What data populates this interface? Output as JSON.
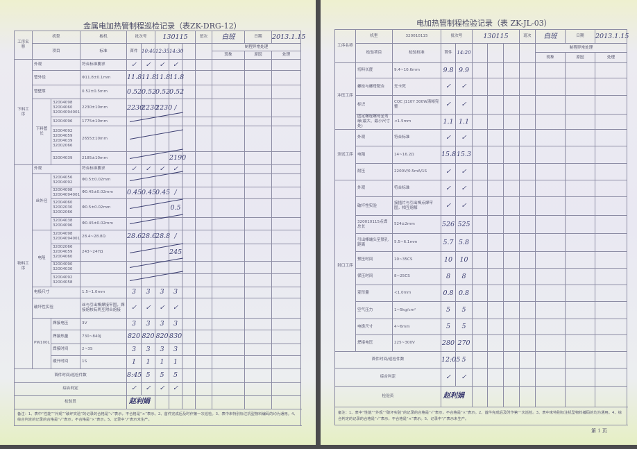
{
  "left": {
    "title": "金属电加热管制程巡检记录（表ZK-DRG-12）",
    "header": {
      "process_name": "工序名称",
      "model_label": "机型",
      "model": "板机",
      "batch_label": "批次号",
      "batch": "130115",
      "shift_label": "班次",
      "shift": "白班",
      "date_label": "日期",
      "date": "2013.1.15",
      "item_label": "项目",
      "standard_label": "标准",
      "first_label": "首件",
      "times": [
        "10:40",
        "12:35",
        "14:30"
      ],
      "abnormal_label": "制程异常处理",
      "phenomenon": "现象",
      "cause": "原因",
      "handling": "处理"
    },
    "rows": [
      {
        "group": "下料工序",
        "item": "外观",
        "standard": "符合标准要求",
        "values": [
          "✓",
          "✓",
          "✓",
          "✓"
        ]
      },
      {
        "item": "管外径",
        "standard": "Φ11.8±0.1mm",
        "values": [
          "11.8",
          "11.8",
          "11.8",
          "11.8"
        ]
      },
      {
        "item": "管壁厚",
        "standard": "0.52±0.5mm",
        "values": [
          "0.52",
          "0.52",
          "0.52",
          "0.52"
        ]
      },
      {
        "sub": "下料管长",
        "code": "32004098 32004060 32004094001",
        "standard": "2230±10mm",
        "values": [
          "2230",
          "2230",
          "2230",
          "/"
        ]
      },
      {
        "code": "32004096",
        "standard": "1775±10mm",
        "values": [
          "",
          "",
          "",
          ""
        ],
        "slash": true
      },
      {
        "code": "32004092 32004059 32004039 32002066",
        "standard": "2655±10mm",
        "values": [
          "",
          "",
          "",
          ""
        ],
        "slash": true
      },
      {
        "code": "32004039",
        "standard": "2185±10mm",
        "values": [
          "",
          "",
          "",
          "2190"
        ],
        "slash": true
      },
      {
        "group": "物料工序",
        "item": "外观",
        "standard": "符合标准要求",
        "values": [
          "✓",
          "✓",
          "✓",
          "✓"
        ]
      },
      {
        "sub": "丝外径",
        "code": "32004056 32004092",
        "standard": "Φ0.5±0.02mm",
        "values": [
          "",
          "",
          "",
          ""
        ],
        "slash": true
      },
      {
        "code": "32004098 32004094001",
        "standard": "Φ0.45±0.02mm",
        "values": [
          "0.45",
          "0.45",
          "0.45",
          "/"
        ]
      },
      {
        "code": "32004060 32002030 32002066",
        "standard": "Φ0.5±0.02mm",
        "values": [
          "",
          "",
          "",
          "0.5"
        ],
        "slash": true
      },
      {
        "code": "32004038 32004096",
        "standard": "Φ0.45±0.02mm",
        "values": [
          "",
          "",
          "",
          ""
        ],
        "slash": true
      },
      {
        "sub": "电阻",
        "code": "32004098 32004094001",
        "standard": "28.4~28.8Ω",
        "values": [
          "28.6",
          "28.6",
          "28.8",
          "/"
        ]
      },
      {
        "code": "32002066 32004059 32004060",
        "standard": "243~247Ω",
        "values": [
          "",
          "",
          "",
          "245"
        ],
        "slash": true
      },
      {
        "code": "32004090 32004030",
        "standard": "",
        "values": [
          "",
          "",
          "",
          ""
        ],
        "slash": true
      },
      {
        "code": "32004092 32004058",
        "standard": "",
        "values": [
          "",
          "",
          "",
          ""
        ],
        "slash": true
      },
      {
        "item": "电极尺寸",
        "standard": "1.5~1.0mm",
        "values": [
          "3",
          "3",
          "3",
          "3"
        ]
      },
      {
        "item": "破坏性实验",
        "standard": "丝与引出棒焊接牢固，焊接熔核有两互附合熔接",
        "values": [
          "✓",
          "✓",
          "✓",
          "✓"
        ]
      },
      {
        "sub": "PW100L",
        "code": "焊接电压",
        "standard": "3V",
        "values": [
          "3",
          "3",
          "3",
          "3"
        ]
      },
      {
        "code": "焊接热量",
        "standard": "730~840J",
        "values": [
          "820",
          "820",
          "820",
          "830"
        ]
      },
      {
        "code": "焊接时间",
        "standard": "2~3S",
        "values": [
          "3",
          "3",
          "3",
          "3"
        ]
      },
      {
        "code": "缓升时间",
        "standard": "1S",
        "values": [
          "1",
          "1",
          "1",
          "1"
        ]
      },
      {
        "label": "首件时间/巡检件数",
        "values": [
          "8:45",
          "5",
          "5",
          "5"
        ]
      },
      {
        "label": "综合判定",
        "values": [
          "✓",
          "✓",
          "✓",
          "✓"
        ]
      },
      {
        "label": "检验员",
        "signature": "赵利娟"
      }
    ],
    "notes": "备注：1、表中“性能”“外观”“破坏实验”的记录的合格是“√”表示，不合格是“×”表示。2、首件完成后及时作第一次巡检。3、表中未特别标注机型物料编码的均为通用。4、综合判定的记录的合格是“√”表示，不合格是“×”表示。5、记录中“/”表示未生产。"
  },
  "right": {
    "title": "电加热管制程检验记录（表 ZK-JL-03）",
    "header": {
      "process_name": "工序名称",
      "model_label": "机型",
      "model": "320010115",
      "batch_label": "批次号",
      "batch": "130115",
      "shift_label": "班次",
      "shift": "白班",
      "date_label": "日期",
      "date": "2013.1.15",
      "item_label": "检验项目",
      "standard_label": "检验标准",
      "first_label": "首件",
      "times": [
        "14:20"
      ],
      "abnormal_label": "制程异常处理",
      "phenomenon": "现象",
      "cause": "原因",
      "handling": "处理"
    },
    "rows": [
      {
        "group": "冲压工序",
        "item": "切料长度",
        "standard": "9.4~10.6mm",
        "values": [
          "9.8",
          "9.9"
        ]
      },
      {
        "item": "螺栓与螺母配合",
        "standard": "无卡死",
        "values": [
          "✓",
          "✓"
        ]
      },
      {
        "item": "标识",
        "standard": "CQC J110Y 300W清晰完整",
        "values": [
          "✓",
          "✓"
        ]
      },
      {
        "item": "固定螺栓螺母至弯缘(最大、最小尺寸处)",
        "standard": "<1.5mm",
        "values": [
          "1.1",
          "1.1"
        ]
      },
      {
        "group": "测试工序",
        "item": "外观",
        "standard": "符合标准",
        "values": [
          "✓",
          "✓"
        ]
      },
      {
        "item": "电阻",
        "standard": "14~16.2Ω",
        "values": [
          "15.8",
          "15.3"
        ]
      },
      {
        "item": "耐压",
        "standard": "2200V/0.5mA/1S",
        "values": [
          "✓",
          "✓"
        ]
      },
      {
        "group": "封口工序",
        "item": "外观",
        "standard": "符合标准",
        "values": [
          "✓",
          "✓"
        ]
      },
      {
        "item": "破坏性实验",
        "standard": "接插片与引出棒点焊牢固，相互熔解",
        "values": [
          "✓",
          "✓"
        ]
      },
      {
        "item": "320010115点焊总长",
        "standard": "524±2mm",
        "values": [
          "526",
          "525"
        ]
      },
      {
        "item": "引出棒端头至锁孔距离",
        "standard": "5.5~6.1mm",
        "values": [
          "5.7",
          "5.8"
        ]
      },
      {
        "item": "预压时间",
        "standard": "10~35CS",
        "values": [
          "10",
          "10"
        ]
      },
      {
        "item": "保压时间",
        "standard": "8~25CS",
        "values": [
          "8",
          "8"
        ]
      },
      {
        "item": "变形量",
        "standard": "<1.0mm",
        "values": [
          "0.8",
          "0.8"
        ]
      },
      {
        "item": "空气压力",
        "standard": "1~5kg/cm²",
        "values": [
          "5",
          "5"
        ]
      },
      {
        "item": "电极尺寸",
        "standard": "4~6mm",
        "values": [
          "5",
          "5"
        ]
      },
      {
        "item": "焊接电压",
        "standard": "225~300V",
        "values": [
          "280",
          "270"
        ]
      },
      {
        "label": "首件时间/巡检件数",
        "values": [
          "12:05",
          "5"
        ]
      },
      {
        "label": "综合判定",
        "values": [
          "✓",
          "✓"
        ]
      },
      {
        "label": "检验员",
        "signature": "赵利娟"
      }
    ],
    "notes": "备注：1、表中“性能”“外观”“破坏实验”的记录的合格是“√”表示，不合格是“×”表示。2、首件完成后及时作第一次巡检。3、表中未特别标注机型物料编码的均为通用。4、综合判定的记录的合格是“√”表示，不合格是“×”表示。5、记录中“/”表示未生产。",
    "page_number": "第 1 页"
  }
}
